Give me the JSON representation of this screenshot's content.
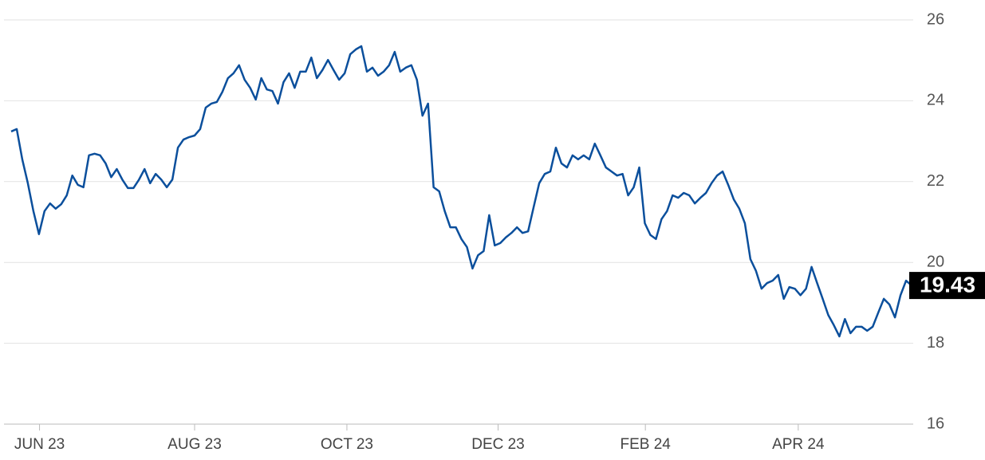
{
  "chart_data": {
    "type": "line",
    "series": [
      {
        "color": "#0b4f9c",
        "values": [
          23.24,
          23.3,
          22.55,
          21.96,
          21.27,
          20.7,
          21.27,
          21.46,
          21.33,
          21.44,
          21.66,
          22.15,
          21.92,
          21.86,
          22.65,
          22.69,
          22.65,
          22.45,
          22.11,
          22.31,
          22.05,
          21.84,
          21.84,
          22.05,
          22.31,
          21.96,
          22.19,
          22.05,
          21.86,
          22.05,
          22.84,
          23.04,
          23.1,
          23.14,
          23.3,
          23.83,
          23.93,
          23.97,
          24.22,
          24.56,
          24.68,
          24.88,
          24.52,
          24.32,
          24.03,
          24.56,
          24.28,
          24.24,
          23.93,
          24.46,
          24.68,
          24.32,
          24.72,
          24.72,
          25.07,
          24.56,
          24.76,
          25.01,
          24.76,
          24.52,
          24.68,
          25.15,
          25.27,
          25.35,
          24.72,
          24.82,
          24.62,
          24.72,
          24.88,
          25.21,
          24.72,
          24.82,
          24.88,
          24.52,
          23.63,
          23.93,
          21.86,
          21.76,
          21.27,
          20.87,
          20.87,
          20.58,
          20.38,
          19.85,
          20.18,
          20.28,
          21.17,
          20.42,
          20.48,
          20.62,
          20.73,
          20.87,
          20.73,
          20.77,
          21.37,
          21.96,
          22.19,
          22.25,
          22.84,
          22.45,
          22.35,
          22.65,
          22.55,
          22.65,
          22.55,
          22.94,
          22.65,
          22.35,
          22.25,
          22.15,
          22.19,
          21.66,
          21.86,
          22.35,
          20.97,
          20.68,
          20.58,
          21.07,
          21.27,
          21.66,
          21.6,
          21.72,
          21.66,
          21.46,
          21.6,
          21.72,
          21.96,
          22.15,
          22.25,
          21.92,
          21.56,
          21.33,
          20.97,
          20.08,
          19.79,
          19.35,
          19.49,
          19.55,
          19.69,
          19.1,
          19.39,
          19.35,
          19.19,
          19.35,
          19.89,
          19.49,
          19.1,
          18.7,
          18.45,
          18.17,
          18.6,
          18.25,
          18.41,
          18.41,
          18.31,
          18.41,
          18.76,
          19.1,
          18.96,
          18.64,
          19.19,
          19.55,
          19.43
        ]
      }
    ],
    "xlim": [
      0,
      162
    ],
    "xticks": [
      {
        "value": 5.1,
        "label": "JUN 23"
      },
      {
        "value": 33,
        "label": "AUG 23"
      },
      {
        "value": 60.4,
        "label": "OCT 23"
      },
      {
        "value": 87.6,
        "label": "DEC 23"
      },
      {
        "value": 114.1,
        "label": "FEB 24"
      },
      {
        "value": 141.6,
        "label": "APR 24"
      }
    ],
    "ylim": [
      16,
      26
    ],
    "yticks": [
      16,
      18,
      20,
      22,
      24,
      26
    ],
    "grid": true
  }
}
